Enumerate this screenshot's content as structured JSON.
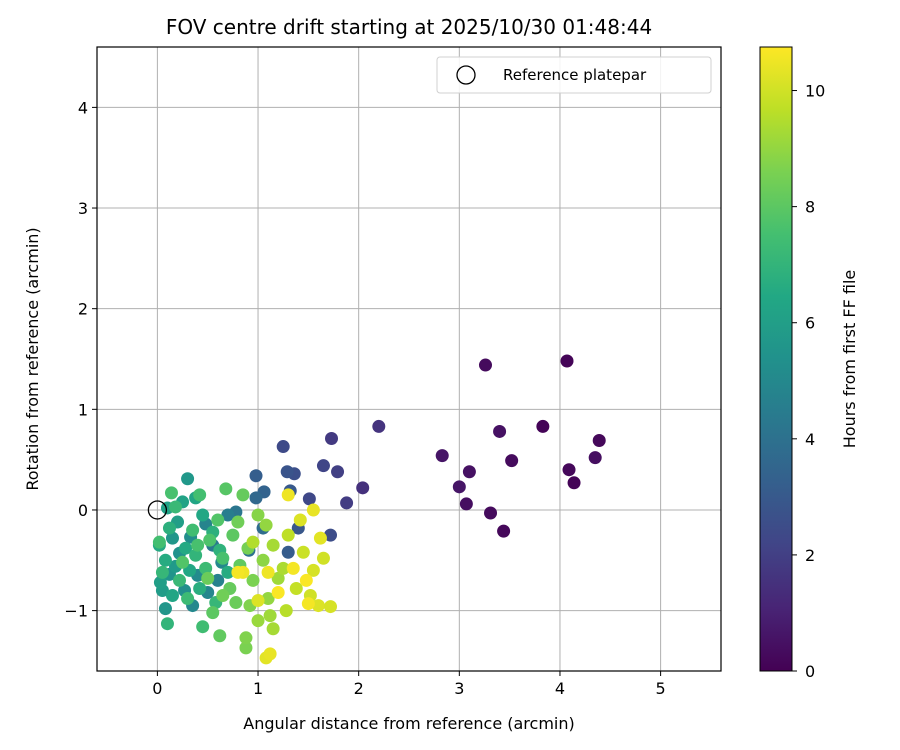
{
  "chart_data": {
    "type": "scatter",
    "title": "FOV centre drift starting at 2025/10/30 01:48:44",
    "xlabel": "Angular distance from reference (arcmin)",
    "ylabel": "Rotation from reference (arcmin)",
    "xlim": [
      -0.6,
      5.6
    ],
    "ylim": [
      -1.6,
      4.6
    ],
    "xticks": [
      0,
      1,
      2,
      3,
      4,
      5
    ],
    "yticks": [
      -1,
      0,
      1,
      2,
      3,
      4
    ],
    "xtick_labels": [
      "0",
      "1",
      "2",
      "3",
      "4",
      "5"
    ],
    "ytick_labels": [
      "−1",
      "0",
      "1",
      "2",
      "3",
      "4"
    ],
    "grid": true,
    "legend": {
      "label": "Reference platepar",
      "placement": "top-right"
    },
    "reference_point": {
      "x": 0,
      "y": 0
    },
    "colorbar": {
      "label": "Hours from first FF file",
      "colormap": "viridis",
      "range": [
        0,
        10.75
      ],
      "ticks": [
        0,
        2,
        4,
        6,
        8,
        10
      ],
      "tick_labels": [
        "0",
        "2",
        "4",
        "6",
        "8",
        "10"
      ]
    },
    "points": [
      {
        "x": 4.07,
        "y": 1.48,
        "h": 0.1
      },
      {
        "x": 3.26,
        "y": 1.44,
        "h": 0.3
      },
      {
        "x": 4.39,
        "y": 0.69,
        "h": 0.2
      },
      {
        "x": 3.83,
        "y": 0.83,
        "h": 0.1
      },
      {
        "x": 3.4,
        "y": 0.78,
        "h": 0.5
      },
      {
        "x": 2.83,
        "y": 0.54,
        "h": 0.6
      },
      {
        "x": 3.52,
        "y": 0.49,
        "h": 0.3
      },
      {
        "x": 4.35,
        "y": 0.52,
        "h": 0.4
      },
      {
        "x": 3.1,
        "y": 0.38,
        "h": 0.5
      },
      {
        "x": 4.09,
        "y": 0.4,
        "h": 0.2
      },
      {
        "x": 4.14,
        "y": 0.27,
        "h": 0.1
      },
      {
        "x": 3.0,
        "y": 0.23,
        "h": 0.6
      },
      {
        "x": 3.07,
        "y": 0.06,
        "h": 0.4
      },
      {
        "x": 3.31,
        "y": -0.03,
        "h": 0.3
      },
      {
        "x": 3.44,
        "y": -0.21,
        "h": 0.2
      },
      {
        "x": 2.2,
        "y": 0.83,
        "h": 1.6
      },
      {
        "x": 1.73,
        "y": 0.71,
        "h": 1.8
      },
      {
        "x": 2.04,
        "y": 0.22,
        "h": 1.5
      },
      {
        "x": 1.88,
        "y": 0.07,
        "h": 1.9
      },
      {
        "x": 1.79,
        "y": 0.38,
        "h": 2.0
      },
      {
        "x": 1.65,
        "y": 0.44,
        "h": 2.2
      },
      {
        "x": 1.25,
        "y": 0.63,
        "h": 2.4
      },
      {
        "x": 1.36,
        "y": 0.36,
        "h": 2.6
      },
      {
        "x": 1.51,
        "y": 0.11,
        "h": 2.3
      },
      {
        "x": 1.29,
        "y": 0.38,
        "h": 2.8
      },
      {
        "x": 1.72,
        "y": -0.25,
        "h": 2.5
      },
      {
        "x": 1.4,
        "y": -0.18,
        "h": 2.9
      },
      {
        "x": 1.32,
        "y": 0.19,
        "h": 3.0
      },
      {
        "x": 0.98,
        "y": 0.34,
        "h": 3.2
      },
      {
        "x": 1.06,
        "y": 0.18,
        "h": 3.4
      },
      {
        "x": 0.98,
        "y": 0.12,
        "h": 3.6
      },
      {
        "x": 1.3,
        "y": -0.42,
        "h": 3.1
      },
      {
        "x": 1.05,
        "y": -0.18,
        "h": 3.8
      },
      {
        "x": 0.78,
        "y": -0.02,
        "h": 4.2
      },
      {
        "x": 0.91,
        "y": -0.4,
        "h": 4.0
      },
      {
        "x": 0.7,
        "y": -0.05,
        "h": 4.5
      },
      {
        "x": 0.55,
        "y": -0.35,
        "h": 4.4
      },
      {
        "x": 0.48,
        "y": -0.14,
        "h": 4.8
      },
      {
        "x": 0.64,
        "y": -0.52,
        "h": 5.0
      },
      {
        "x": 0.33,
        "y": -0.27,
        "h": 5.2
      },
      {
        "x": 0.22,
        "y": -0.43,
        "h": 5.4
      },
      {
        "x": 0.4,
        "y": -0.65,
        "h": 5.1
      },
      {
        "x": 0.15,
        "y": -0.28,
        "h": 5.6
      },
      {
        "x": 0.3,
        "y": 0.31,
        "h": 5.7
      },
      {
        "x": 0.12,
        "y": -0.64,
        "h": 5.5
      },
      {
        "x": 0.18,
        "y": -0.56,
        "h": 5.8
      },
      {
        "x": 0.05,
        "y": -0.8,
        "h": 5.9
      },
      {
        "x": 0.08,
        "y": -0.98,
        "h": 5.6
      },
      {
        "x": 0.27,
        "y": -0.8,
        "h": 5.3
      },
      {
        "x": 0.35,
        "y": -0.95,
        "h": 5.0
      },
      {
        "x": 0.5,
        "y": -0.82,
        "h": 4.9
      },
      {
        "x": 0.6,
        "y": -0.7,
        "h": 4.7
      },
      {
        "x": 0.03,
        "y": -0.72,
        "h": 6.0
      },
      {
        "x": 0.1,
        "y": 0.02,
        "h": 6.1
      },
      {
        "x": 0.25,
        "y": 0.08,
        "h": 6.2
      },
      {
        "x": 0.38,
        "y": 0.12,
        "h": 6.3
      },
      {
        "x": 0.2,
        "y": -0.12,
        "h": 6.0
      },
      {
        "x": 0.45,
        "y": -0.05,
        "h": 6.4
      },
      {
        "x": 0.02,
        "y": -0.35,
        "h": 6.5
      },
      {
        "x": 0.08,
        "y": -0.5,
        "h": 6.6
      },
      {
        "x": 0.15,
        "y": -0.85,
        "h": 6.3
      },
      {
        "x": 0.32,
        "y": -0.6,
        "h": 6.4
      },
      {
        "x": 0.42,
        "y": -0.78,
        "h": 6.7
      },
      {
        "x": 0.55,
        "y": -0.22,
        "h": 6.8
      },
      {
        "x": 0.62,
        "y": -0.4,
        "h": 6.9
      },
      {
        "x": 0.7,
        "y": -0.62,
        "h": 6.6
      },
      {
        "x": 0.28,
        "y": -0.38,
        "h": 6.5
      },
      {
        "x": 0.12,
        "y": -0.18,
        "h": 6.8
      },
      {
        "x": 0.38,
        "y": -0.45,
        "h": 7.0
      },
      {
        "x": 0.05,
        "y": -0.62,
        "h": 7.1
      },
      {
        "x": 0.22,
        "y": -0.7,
        "h": 7.2
      },
      {
        "x": 0.48,
        "y": -0.58,
        "h": 7.3
      },
      {
        "x": 0.35,
        "y": -0.2,
        "h": 7.4
      },
      {
        "x": 0.18,
        "y": 0.03,
        "h": 7.2
      },
      {
        "x": 0.42,
        "y": 0.15,
        "h": 7.5
      },
      {
        "x": 0.14,
        "y": 0.17,
        "h": 7.6
      },
      {
        "x": 0.3,
        "y": -0.88,
        "h": 7.3
      },
      {
        "x": 0.58,
        "y": -0.92,
        "h": 7.1
      },
      {
        "x": 0.1,
        "y": -1.13,
        "h": 7.0
      },
      {
        "x": 0.45,
        "y": -1.16,
        "h": 7.4
      },
      {
        "x": 0.02,
        "y": -0.32,
        "h": 7.5
      },
      {
        "x": 0.65,
        "y": -0.48,
        "h": 7.6
      },
      {
        "x": 0.52,
        "y": -0.3,
        "h": 7.7
      },
      {
        "x": 0.25,
        "y": -0.52,
        "h": 7.8
      },
      {
        "x": 0.4,
        "y": -0.35,
        "h": 7.6
      },
      {
        "x": 0.68,
        "y": 0.21,
        "h": 7.9
      },
      {
        "x": 0.6,
        "y": -0.1,
        "h": 7.8
      },
      {
        "x": 0.75,
        "y": -0.25,
        "h": 8.0
      },
      {
        "x": 0.82,
        "y": -0.55,
        "h": 8.1
      },
      {
        "x": 0.72,
        "y": -0.78,
        "h": 8.2
      },
      {
        "x": 0.55,
        "y": -1.02,
        "h": 8.0
      },
      {
        "x": 0.62,
        "y": -1.25,
        "h": 8.1
      },
      {
        "x": 0.78,
        "y": -0.92,
        "h": 8.3
      },
      {
        "x": 0.85,
        "y": 0.15,
        "h": 8.2
      },
      {
        "x": 0.8,
        "y": -0.12,
        "h": 8.4
      },
      {
        "x": 0.9,
        "y": -0.38,
        "h": 8.5
      },
      {
        "x": 0.88,
        "y": -1.37,
        "h": 8.6
      },
      {
        "x": 0.88,
        "y": -1.27,
        "h": 8.7
      },
      {
        "x": 0.95,
        "y": -0.7,
        "h": 8.6
      },
      {
        "x": 1.0,
        "y": -0.05,
        "h": 8.8
      },
      {
        "x": 0.5,
        "y": -0.68,
        "h": 8.3
      },
      {
        "x": 0.65,
        "y": -0.85,
        "h": 8.4
      },
      {
        "x": 1.05,
        "y": -0.5,
        "h": 8.9
      },
      {
        "x": 0.92,
        "y": -0.95,
        "h": 8.7
      },
      {
        "x": 1.1,
        "y": -0.88,
        "h": 9.0
      },
      {
        "x": 1.0,
        "y": -1.1,
        "h": 9.1
      },
      {
        "x": 1.12,
        "y": -1.05,
        "h": 9.2
      },
      {
        "x": 1.15,
        "y": -0.35,
        "h": 9.3
      },
      {
        "x": 1.2,
        "y": -0.68,
        "h": 9.2
      },
      {
        "x": 1.25,
        "y": -0.58,
        "h": 9.4
      },
      {
        "x": 0.95,
        "y": -0.32,
        "h": 9.5
      },
      {
        "x": 1.08,
        "y": -0.15,
        "h": 9.0
      },
      {
        "x": 1.15,
        "y": -1.18,
        "h": 9.3
      },
      {
        "x": 1.28,
        "y": -1.0,
        "h": 9.6
      },
      {
        "x": 1.3,
        "y": -0.25,
        "h": 9.7
      },
      {
        "x": 1.38,
        "y": -0.78,
        "h": 9.8
      },
      {
        "x": 1.45,
        "y": -0.42,
        "h": 9.9
      },
      {
        "x": 1.52,
        "y": -0.85,
        "h": 10.0
      },
      {
        "x": 1.55,
        "y": -0.6,
        "h": 10.1
      },
      {
        "x": 1.6,
        "y": -0.95,
        "h": 10.2
      },
      {
        "x": 1.62,
        "y": -0.28,
        "h": 10.3
      },
      {
        "x": 1.55,
        "y": 0.0,
        "h": 10.4
      },
      {
        "x": 1.3,
        "y": 0.15,
        "h": 10.5
      },
      {
        "x": 1.42,
        "y": -0.1,
        "h": 10.2
      },
      {
        "x": 1.72,
        "y": -0.96,
        "h": 10.1
      },
      {
        "x": 1.65,
        "y": -0.48,
        "h": 10.0
      },
      {
        "x": 1.08,
        "y": -1.47,
        "h": 10.3
      },
      {
        "x": 1.12,
        "y": -1.43,
        "h": 10.4
      },
      {
        "x": 0.85,
        "y": -0.62,
        "h": 10.5
      },
      {
        "x": 0.8,
        "y": -0.62,
        "h": 10.6
      },
      {
        "x": 1.35,
        "y": -0.58,
        "h": 10.6
      },
      {
        "x": 1.48,
        "y": -0.7,
        "h": 10.7
      },
      {
        "x": 1.1,
        "y": -0.62,
        "h": 10.5
      },
      {
        "x": 1.2,
        "y": -0.82,
        "h": 10.7
      },
      {
        "x": 1.0,
        "y": -0.9,
        "h": 10.2
      },
      {
        "x": 1.5,
        "y": -0.93,
        "h": 10.6
      }
    ]
  }
}
